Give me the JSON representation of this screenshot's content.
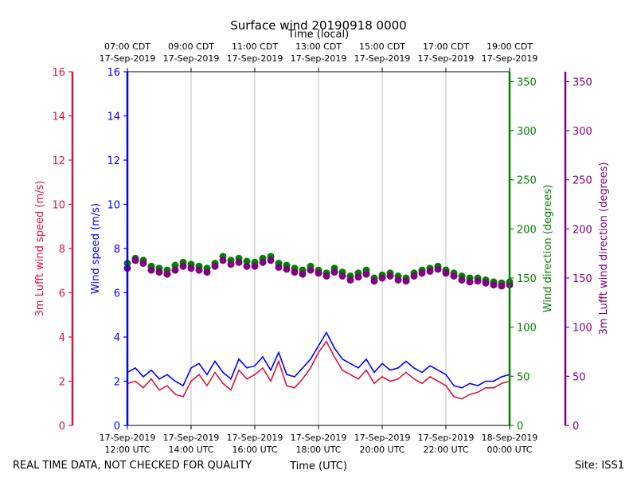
{
  "chart_data": {
    "type": "scatter",
    "title": "Surface wind 20190918 0000",
    "top_axis_label": "Time (local)",
    "xlabel": "Time (UTC)",
    "footer_left": "REAL TIME DATA, NOT CHECKED FOR QUALITY",
    "footer_right": "Site: ISS1",
    "x_range_hours_utc": [
      12,
      24
    ],
    "bottom_ticks": [
      {
        "hour": 12,
        "line1": "17-Sep-2019",
        "line2": "12:00 UTC"
      },
      {
        "hour": 14,
        "line1": "17-Sep-2019",
        "line2": "14:00 UTC"
      },
      {
        "hour": 16,
        "line1": "17-Sep-2019",
        "line2": "16:00 UTC"
      },
      {
        "hour": 18,
        "line1": "17-Sep-2019",
        "line2": "18:00 UTC"
      },
      {
        "hour": 20,
        "line1": "17-Sep-2019",
        "line2": "20:00 UTC"
      },
      {
        "hour": 22,
        "line1": "17-Sep-2019",
        "line2": "22:00 UTC"
      },
      {
        "hour": 24,
        "line1": "18-Sep-2019",
        "line2": "00:00 UTC"
      }
    ],
    "top_ticks": [
      {
        "hour": 12,
        "line1": "07:00 CDT",
        "line2": "17-Sep-2019"
      },
      {
        "hour": 14,
        "line1": "09:00 CDT",
        "line2": "17-Sep-2019"
      },
      {
        "hour": 16,
        "line1": "11:00 CDT",
        "line2": "17-Sep-2019"
      },
      {
        "hour": 18,
        "line1": "13:00 CDT",
        "line2": "17-Sep-2019"
      },
      {
        "hour": 20,
        "line1": "15:00 CDT",
        "line2": "17-Sep-2019"
      },
      {
        "hour": 22,
        "line1": "17:00 CDT",
        "line2": "17-Sep-2019"
      },
      {
        "hour": 24,
        "line1": "19:00 CDT",
        "line2": "17-Sep-2019"
      }
    ],
    "axes": {
      "lufft_speed": {
        "label": "3m Lufft wind speed (m/s)",
        "color": "#dc143c",
        "range": [
          0,
          16
        ],
        "ticks": [
          0,
          2,
          4,
          6,
          8,
          10,
          12,
          14,
          16
        ]
      },
      "wind_speed": {
        "label": "Wind speed (m/s)",
        "color": "#0000ff",
        "range": [
          0,
          16
        ],
        "ticks": [
          0,
          2,
          4,
          6,
          8,
          10,
          12,
          14,
          16
        ]
      },
      "wind_dir": {
        "label": "Wind direction (degrees)",
        "color": "#008000",
        "range": [
          0,
          360
        ],
        "ticks": [
          0,
          50,
          100,
          150,
          200,
          250,
          300,
          350
        ]
      },
      "lufft_dir": {
        "label": "3m Lufft wind direction (degrees)",
        "color": "#800080",
        "range": [
          0,
          360
        ],
        "ticks": [
          0,
          50,
          100,
          150,
          200,
          250,
          300,
          350
        ]
      }
    },
    "series": [
      {
        "name": "Wind speed",
        "axis": "wind_speed",
        "style": "line",
        "color": "#0000ff",
        "x": [
          12.0,
          12.25,
          12.5,
          12.75,
          13.0,
          13.25,
          13.5,
          13.75,
          14.0,
          14.25,
          14.5,
          14.75,
          15.0,
          15.25,
          15.5,
          15.75,
          16.0,
          16.25,
          16.5,
          16.75,
          17.0,
          17.25,
          17.5,
          17.75,
          18.0,
          18.25,
          18.5,
          18.75,
          19.0,
          19.25,
          19.5,
          19.75,
          20.0,
          20.25,
          20.5,
          20.75,
          21.0,
          21.25,
          21.5,
          21.75,
          22.0,
          22.25,
          22.5,
          22.75,
          23.0,
          23.25,
          23.5,
          23.75,
          24.0
        ],
        "values": [
          2.4,
          2.6,
          2.2,
          2.5,
          2.1,
          2.3,
          2.0,
          1.8,
          2.6,
          2.8,
          2.3,
          2.9,
          2.4,
          2.1,
          3.0,
          2.6,
          2.7,
          3.1,
          2.5,
          3.3,
          2.3,
          2.2,
          2.6,
          3.0,
          3.6,
          4.2,
          3.5,
          3.0,
          2.8,
          2.6,
          3.0,
          2.4,
          2.8,
          2.5,
          2.6,
          2.9,
          2.6,
          2.4,
          2.7,
          2.5,
          2.3,
          1.8,
          1.7,
          1.9,
          1.8,
          2.0,
          2.0,
          2.2,
          2.3
        ]
      },
      {
        "name": "3m Lufft wind speed",
        "axis": "lufft_speed",
        "style": "line",
        "color": "#dc143c",
        "x": [
          12.0,
          12.25,
          12.5,
          12.75,
          13.0,
          13.25,
          13.5,
          13.75,
          14.0,
          14.25,
          14.5,
          14.75,
          15.0,
          15.25,
          15.5,
          15.75,
          16.0,
          16.25,
          16.5,
          16.75,
          17.0,
          17.25,
          17.5,
          17.75,
          18.0,
          18.25,
          18.5,
          18.75,
          19.0,
          19.25,
          19.5,
          19.75,
          20.0,
          20.25,
          20.5,
          20.75,
          21.0,
          21.25,
          21.5,
          21.75,
          22.0,
          22.25,
          22.5,
          22.75,
          23.0,
          23.25,
          23.5,
          23.75,
          24.0
        ],
        "values": [
          1.9,
          2.0,
          1.7,
          2.1,
          1.6,
          1.8,
          1.4,
          1.3,
          2.0,
          2.3,
          1.8,
          2.4,
          1.9,
          1.6,
          2.5,
          2.1,
          2.3,
          2.6,
          2.0,
          2.9,
          1.8,
          1.7,
          2.1,
          2.6,
          3.3,
          3.8,
          3.1,
          2.5,
          2.3,
          2.1,
          2.5,
          1.9,
          2.2,
          2.0,
          2.1,
          2.4,
          2.1,
          1.9,
          2.2,
          2.0,
          1.8,
          1.3,
          1.2,
          1.4,
          1.5,
          1.7,
          1.7,
          1.9,
          2.0
        ]
      },
      {
        "name": "Wind direction",
        "axis": "wind_dir",
        "style": "markers",
        "color": "#008000",
        "x": [
          12.0,
          12.25,
          12.5,
          12.75,
          13.0,
          13.25,
          13.5,
          13.75,
          14.0,
          14.25,
          14.5,
          14.75,
          15.0,
          15.25,
          15.5,
          15.75,
          16.0,
          16.25,
          16.5,
          16.75,
          17.0,
          17.25,
          17.5,
          17.75,
          18.0,
          18.25,
          18.5,
          18.75,
          19.0,
          19.25,
          19.5,
          19.75,
          20.0,
          20.25,
          20.5,
          20.75,
          21.0,
          21.25,
          21.5,
          21.75,
          22.0,
          22.25,
          22.5,
          22.75,
          23.0,
          23.25,
          23.5,
          23.75,
          24.0
        ],
        "values": [
          165,
          170,
          168,
          162,
          160,
          158,
          163,
          166,
          164,
          162,
          160,
          165,
          172,
          168,
          170,
          167,
          166,
          170,
          172,
          165,
          163,
          160,
          158,
          162,
          158,
          155,
          160,
          156,
          152,
          155,
          158,
          150,
          153,
          155,
          152,
          150,
          155,
          158,
          160,
          162,
          158,
          155,
          152,
          150,
          150,
          148,
          146,
          145,
          146
        ]
      },
      {
        "name": "3m Lufft wind direction",
        "axis": "lufft_dir",
        "style": "markers",
        "color": "#800080",
        "x": [
          12.0,
          12.25,
          12.5,
          12.75,
          13.0,
          13.25,
          13.5,
          13.75,
          14.0,
          14.25,
          14.5,
          14.75,
          15.0,
          15.25,
          15.5,
          15.75,
          16.0,
          16.25,
          16.5,
          16.75,
          17.0,
          17.25,
          17.5,
          17.75,
          18.0,
          18.25,
          18.5,
          18.75,
          19.0,
          19.25,
          19.5,
          19.75,
          20.0,
          20.25,
          20.5,
          20.75,
          21.0,
          21.25,
          21.5,
          21.75,
          22.0,
          22.25,
          22.5,
          22.75,
          23.0,
          23.25,
          23.5,
          23.75,
          24.0
        ],
        "values": [
          160,
          168,
          165,
          158,
          156,
          154,
          158,
          162,
          160,
          158,
          156,
          162,
          168,
          164,
          166,
          162,
          162,
          166,
          168,
          161,
          159,
          156,
          154,
          158,
          155,
          152,
          156,
          152,
          148,
          151,
          154,
          147,
          150,
          152,
          148,
          147,
          152,
          155,
          157,
          159,
          155,
          152,
          148,
          146,
          147,
          145,
          143,
          142,
          143
        ]
      }
    ]
  }
}
